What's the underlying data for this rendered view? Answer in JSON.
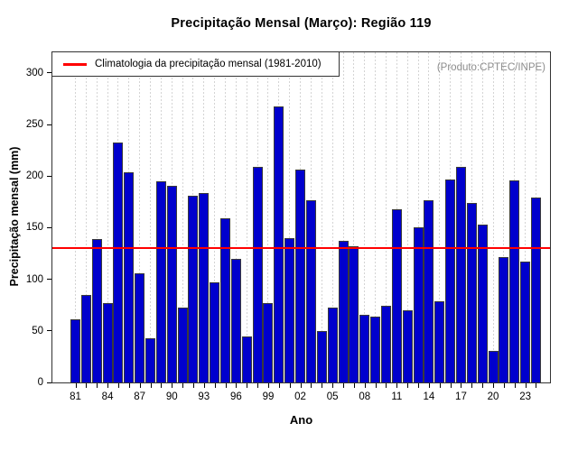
{
  "legend": {
    "label": "Climatologia da precipitação mensal (1981-2010)"
  },
  "annotation": "(Produto:CPTEC/INPE)",
  "colors": {
    "bar": "#0000cd",
    "bar_border": "#3a3a3a",
    "climatology_line": "#ff0000",
    "annotation_text": "#8c8c8c",
    "grid": "#d4d4d4"
  },
  "chart_data": {
    "type": "bar",
    "title": "Precipitação Mensal (Março): Região 119",
    "xlabel": "Ano",
    "ylabel": "Precipitação mensal (mm)",
    "x": [
      1981,
      1982,
      1983,
      1984,
      1985,
      1986,
      1987,
      1988,
      1989,
      1990,
      1991,
      1992,
      1993,
      1994,
      1995,
      1996,
      1997,
      1998,
      1999,
      2000,
      2001,
      2002,
      2003,
      2004,
      2005,
      2006,
      2007,
      2008,
      2009,
      2010,
      2011,
      2012,
      2013,
      2014,
      2015,
      2016,
      2017,
      2018,
      2019,
      2020,
      2021,
      2022,
      2023,
      2024
    ],
    "values": [
      61,
      85,
      139,
      77,
      233,
      204,
      106,
      43,
      195,
      191,
      73,
      181,
      184,
      97,
      159,
      120,
      45,
      209,
      77,
      268,
      140,
      206,
      177,
      50,
      73,
      137,
      132,
      66,
      64,
      74,
      168,
      70,
      150,
      177,
      79,
      197,
      209,
      174,
      153,
      31,
      122,
      196,
      117,
      179
    ],
    "climatology_mean": 130,
    "ylim": [
      0,
      320
    ],
    "yticks": [
      0,
      50,
      100,
      150,
      200,
      250,
      300
    ],
    "xtick_label_step": 3,
    "xtick_labels": [
      "81",
      "84",
      "87",
      "90",
      "93",
      "96",
      "99",
      "02",
      "05",
      "08",
      "11",
      "14",
      "17",
      "20",
      "23"
    ],
    "grid": "vertical-dashed-per-year",
    "legend_position": "top-left"
  }
}
